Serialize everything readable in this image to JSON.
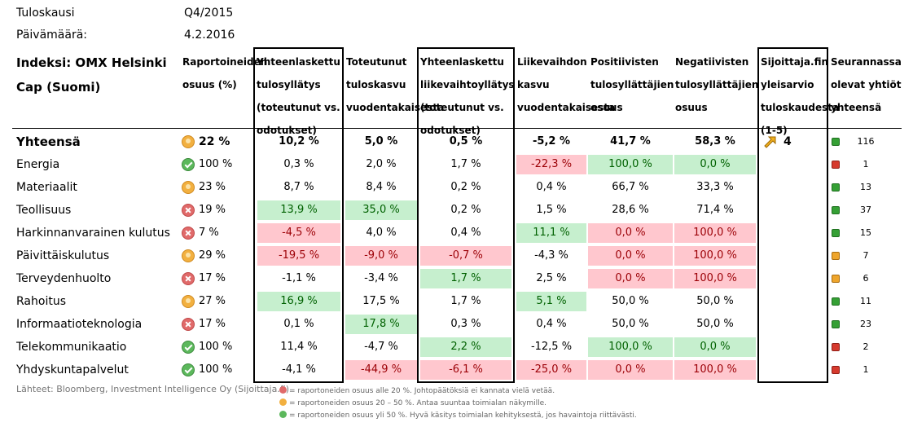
{
  "meta": {
    "period_label": "Tuloskausi",
    "period_value": "Q4/2015",
    "date_label": "Päivämäärä:",
    "date_value": "4.2.2016"
  },
  "index_title": "Indeksi: OMX Helsinki Cap (Suomi)",
  "headers": {
    "share": "Raportoineiden osuus (%)",
    "eps_surprise": "Yhteenlaskettu tulosyllätys (toteutunut vs. odotukset)",
    "eps_growth": "Toteutunut tuloskasvu vuodentakaisesta",
    "rev_surprise": "Yhteenlaskettu liikevaihtoyllätys (toteutunut vs. odotukset)",
    "rev_growth": "Liikevaihdon kasvu vuodentakaisesta",
    "positive": "Positiivisten tulosyllättäjien osuus",
    "negative": "Negatiivisten tulosyllättäjien osuus",
    "rating": "Sijoittaja.fin yleisarvio tuloskaudesta (1-5)",
    "count": "Seurannassa olevat yhtiöt yhteensä"
  },
  "total": {
    "name": "Yhteensä",
    "share": "22 %",
    "share_icon": "orange-circle-icon",
    "eps_surprise": "10,2 %",
    "eps_growth": "5,0 %",
    "rev_surprise": "0,5 %",
    "rev_growth": "-5,2 %",
    "positive": "41,7 %",
    "negative": "58,3 %",
    "rating": "4",
    "rating_icon": "arrow-up-right-icon",
    "count": "116",
    "count_color": "green"
  },
  "rows": [
    {
      "name": "Energia",
      "share": "100 %",
      "icon": "c",
      "eps_surprise": "0,3 %",
      "eps_c": "",
      "eps_growth": "2,0 %",
      "epsg_c": "",
      "rev_surprise": "1,7 %",
      "revs_c": "",
      "rev_growth": "-22,3 %",
      "revg_c": "r",
      "positive": "100,0 %",
      "pos_c": "g",
      "negative": "0,0 %",
      "neg_c": "g",
      "count": "1",
      "dot": "red"
    },
    {
      "name": "Materiaalit",
      "share": "23 %",
      "icon": "o",
      "eps_surprise": "8,7 %",
      "eps_c": "",
      "eps_growth": "8,4 %",
      "epsg_c": "",
      "rev_surprise": "0,2 %",
      "revs_c": "",
      "rev_growth": "0,4 %",
      "revg_c": "",
      "positive": "66,7 %",
      "pos_c": "",
      "negative": "33,3 %",
      "neg_c": "",
      "count": "13",
      "dot": "green"
    },
    {
      "name": "Teollisuus",
      "share": "19 %",
      "icon": "x",
      "eps_surprise": "13,9 %",
      "eps_c": "g",
      "eps_growth": "35,0 %",
      "epsg_c": "g",
      "rev_surprise": "0,2 %",
      "revs_c": "",
      "rev_growth": "1,5 %",
      "revg_c": "",
      "positive": "28,6 %",
      "pos_c": "",
      "negative": "71,4 %",
      "neg_c": "",
      "count": "37",
      "dot": "green"
    },
    {
      "name": "Harkinnanvarainen kulutus",
      "share": "7 %",
      "icon": "x",
      "eps_surprise": "-4,5 %",
      "eps_c": "r",
      "eps_growth": "4,0 %",
      "epsg_c": "",
      "rev_surprise": "0,4 %",
      "revs_c": "",
      "rev_growth": "11,1 %",
      "revg_c": "g",
      "positive": "0,0 %",
      "pos_c": "r",
      "negative": "100,0 %",
      "neg_c": "r",
      "count": "15",
      "dot": "green"
    },
    {
      "name": "Päivittäiskulutus",
      "share": "29 %",
      "icon": "o",
      "eps_surprise": "-19,5 %",
      "eps_c": "r",
      "eps_growth": "-9,0 %",
      "epsg_c": "r",
      "rev_surprise": "-0,7 %",
      "revs_c": "r",
      "rev_growth": "-4,3 %",
      "revg_c": "",
      "positive": "0,0 %",
      "pos_c": "r",
      "negative": "100,0 %",
      "neg_c": "r",
      "count": "7",
      "dot": "orange"
    },
    {
      "name": "Terveydenhuolto",
      "share": "17 %",
      "icon": "x",
      "eps_surprise": "-1,1 %",
      "eps_c": "",
      "eps_growth": "-3,4 %",
      "epsg_c": "",
      "rev_surprise": "1,7 %",
      "revs_c": "g",
      "rev_growth": "2,5 %",
      "revg_c": "",
      "positive": "0,0 %",
      "pos_c": "r",
      "negative": "100,0 %",
      "neg_c": "r",
      "count": "6",
      "dot": "orange"
    },
    {
      "name": "Rahoitus",
      "share": "27 %",
      "icon": "o",
      "eps_surprise": "16,9 %",
      "eps_c": "g",
      "eps_growth": "17,5 %",
      "epsg_c": "",
      "rev_surprise": "1,7 %",
      "revs_c": "",
      "rev_growth": "5,1 %",
      "revg_c": "g",
      "positive": "50,0 %",
      "pos_c": "",
      "negative": "50,0 %",
      "neg_c": "",
      "count": "11",
      "dot": "green"
    },
    {
      "name": "Informaatioteknologia",
      "share": "17 %",
      "icon": "x",
      "eps_surprise": "0,1 %",
      "eps_c": "",
      "eps_growth": "17,8 %",
      "epsg_c": "g",
      "rev_surprise": "0,3 %",
      "revs_c": "",
      "rev_growth": "0,4 %",
      "revg_c": "",
      "positive": "50,0 %",
      "pos_c": "",
      "negative": "50,0 %",
      "neg_c": "",
      "count": "23",
      "dot": "green"
    },
    {
      "name": "Telekommunikaatio",
      "share": "100 %",
      "icon": "c",
      "eps_surprise": "11,4 %",
      "eps_c": "",
      "eps_growth": "-4,7 %",
      "epsg_c": "",
      "rev_surprise": "2,2 %",
      "revs_c": "g",
      "rev_growth": "-12,5 %",
      "revg_c": "",
      "positive": "100,0 %",
      "pos_c": "g",
      "negative": "0,0 %",
      "neg_c": "g",
      "count": "2",
      "dot": "red"
    },
    {
      "name": "Yhdyskuntapalvelut",
      "share": "100 %",
      "icon": "c",
      "eps_surprise": "-4,1 %",
      "eps_c": "",
      "eps_growth": "-44,9 %",
      "epsg_c": "r",
      "rev_surprise": "-6,1 %",
      "revs_c": "r",
      "rev_growth": "-25,0 %",
      "revg_c": "r",
      "positive": "0,0 %",
      "pos_c": "r",
      "negative": "100,0 %",
      "neg_c": "r",
      "count": "1",
      "dot": "red"
    }
  ],
  "footer": {
    "source": "Lähteet: Bloomberg, Investment Intelligence Oy (Sijoittaja.fi)",
    "legend": [
      {
        "icon": "x",
        "text": "= raportoneiden osuus alle 20 %. Johtopäätöksiä ei kannata vielä vetää."
      },
      {
        "icon": "o",
        "text": "= raportoneiden osuus 20 – 50 %. Antaa suuntaa toimialan näkymille."
      },
      {
        "icon": "c",
        "text": "= raportoneiden osuus yli 50 %. Hyvä käsitys toimialan kehityksestä, jos havaintoja riittävästi."
      }
    ]
  },
  "colors": {
    "positive_bg": "#c6efce",
    "positive_text": "#006100",
    "negative_bg": "#ffc7ce",
    "negative_text": "#9c0006"
  }
}
